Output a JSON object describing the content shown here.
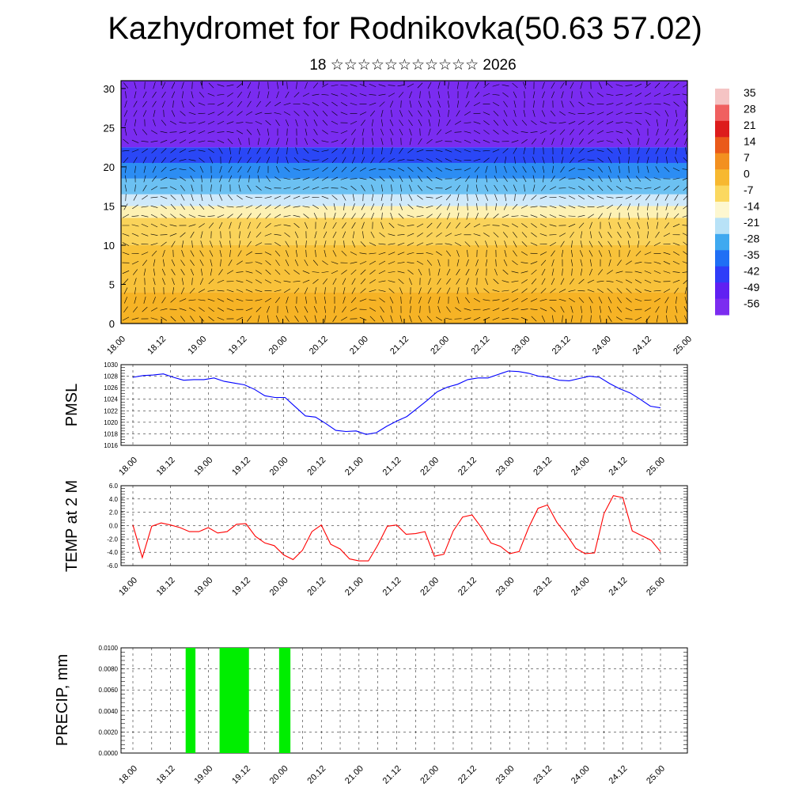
{
  "title": "Kazhydromet for Rodnikovka(50.63 57.02)",
  "subtitle": "18 ☆☆☆☆☆☆☆☆☆☆☆ 2026",
  "x_tick_labels": [
    "18.00",
    "18.12",
    "19.00",
    "19.12",
    "20.00",
    "20.12",
    "21.00",
    "21.12",
    "22.00",
    "22.12",
    "23.00",
    "23.12",
    "24.00",
    "24.12",
    "25.00"
  ],
  "colors": {
    "pmsl_line": "#0000ff",
    "temp_line": "#ff0000",
    "precip_bar": "#00ee00",
    "vector": "#000000"
  },
  "chart_data": [
    {
      "type": "heatmap",
      "name": "cross-section",
      "y_ticks": [
        "0",
        "5",
        "10",
        "15",
        "20",
        "25",
        "30"
      ],
      "ylim": [
        0,
        31
      ],
      "colorbar_labels": [
        "35",
        "28",
        "21",
        "14",
        "7",
        "0",
        "-7",
        "-14",
        "-21",
        "-28",
        "-35",
        "-42",
        "-49",
        "-56"
      ],
      "colorbar_colors": [
        "#f5c4c4",
        "#f06060",
        "#dd1c1c",
        "#ea5a1a",
        "#f39020",
        "#f7b830",
        "#fbd860",
        "#fdf7d0",
        "#b8e2f7",
        "#3fa9f0",
        "#1f6ff5",
        "#2f3df8",
        "#6020f2",
        "#7c2cf0"
      ],
      "bands": [
        {
          "from": 0,
          "to": 4,
          "color": "#f6b325"
        },
        {
          "from": 4,
          "to": 10,
          "color": "#f8c23a"
        },
        {
          "from": 10,
          "to": 13.5,
          "color": "#fad35a"
        },
        {
          "from": 13.5,
          "to": 15,
          "color": "#fdf1b4"
        },
        {
          "from": 15,
          "to": 16.5,
          "color": "#cfe9fa"
        },
        {
          "from": 16.5,
          "to": 18.5,
          "color": "#6cc1f2"
        },
        {
          "from": 18.5,
          "to": 20.5,
          "color": "#2c8df3"
        },
        {
          "from": 20.5,
          "to": 22.5,
          "color": "#2a47f6"
        },
        {
          "from": 22.5,
          "to": 31,
          "color": "#7a2cf0"
        }
      ]
    },
    {
      "type": "line",
      "name": "PMSL",
      "ylabel": "PMSL",
      "ylim": [
        1016,
        1030
      ],
      "y_ticks": [
        "1016",
        "1018",
        "1020",
        "1022",
        "1024",
        "1026",
        "1028",
        "1030"
      ],
      "y": [
        1027.8,
        1028.1,
        1028.2,
        1028.4,
        1027.8,
        1027.3,
        1027.4,
        1027.4,
        1027.7,
        1027.1,
        1026.8,
        1026.5,
        1025.7,
        1024.6,
        1024.3,
        1024.3,
        1022.7,
        1021.1,
        1020.9,
        1019.8,
        1018.6,
        1018.4,
        1018.5,
        1017.9,
        1018.2,
        1019.3,
        1020.2,
        1021.0,
        1022.4,
        1023.8,
        1025.3,
        1026.1,
        1026.6,
        1027.4,
        1027.7,
        1027.7,
        1028.3,
        1028.9,
        1028.8,
        1028.5,
        1028.0,
        1027.8,
        1027.3,
        1027.2,
        1027.6,
        1028.0,
        1027.8,
        1026.7,
        1025.8,
        1025.1,
        1024.0,
        1022.8,
        1022.5
      ]
    },
    {
      "type": "line",
      "name": "TEMP at 2 M",
      "ylabel": "TEMP at 2 M",
      "ylim": [
        -6,
        6
      ],
      "y_ticks": [
        "-6.0",
        "-4.0",
        "-2.0",
        "0.0",
        "2.0",
        "4.0",
        "6.0"
      ],
      "y": [
        0.1,
        -4.8,
        -0.1,
        0.4,
        0.1,
        -0.3,
        -0.9,
        -0.9,
        -0.3,
        -1.1,
        -0.9,
        0.2,
        0.3,
        -1.6,
        -2.6,
        -3.0,
        -4.4,
        -5.1,
        -3.7,
        -0.9,
        0.1,
        -2.8,
        -3.5,
        -5.0,
        -5.3,
        -5.3,
        -2.9,
        -0.1,
        0.1,
        -1.3,
        -1.2,
        -0.9,
        -4.6,
        -4.3,
        -0.8,
        1.3,
        1.6,
        -0.3,
        -2.6,
        -3.1,
        -4.2,
        -3.9,
        -0.3,
        2.6,
        3.1,
        0.5,
        -1.3,
        -3.4,
        -4.2,
        -4.1,
        1.8,
        4.5,
        4.2,
        -0.8,
        -1.5,
        -2.2,
        -3.9
      ]
    },
    {
      "type": "bar",
      "name": "PRECIP, mm",
      "ylabel": "PRECIP, mm",
      "ylim": [
        0,
        0.01
      ],
      "y_ticks": [
        "0.0000",
        "0.0020",
        "0.0040",
        "0.0060",
        "0.0080",
        "0.0100"
      ],
      "x_ranges": [
        [
          0.7,
          0.83
        ],
        [
          1.15,
          1.54
        ],
        [
          1.94,
          2.09
        ]
      ],
      "values": [
        0.01,
        0.01,
        0.01
      ]
    }
  ]
}
